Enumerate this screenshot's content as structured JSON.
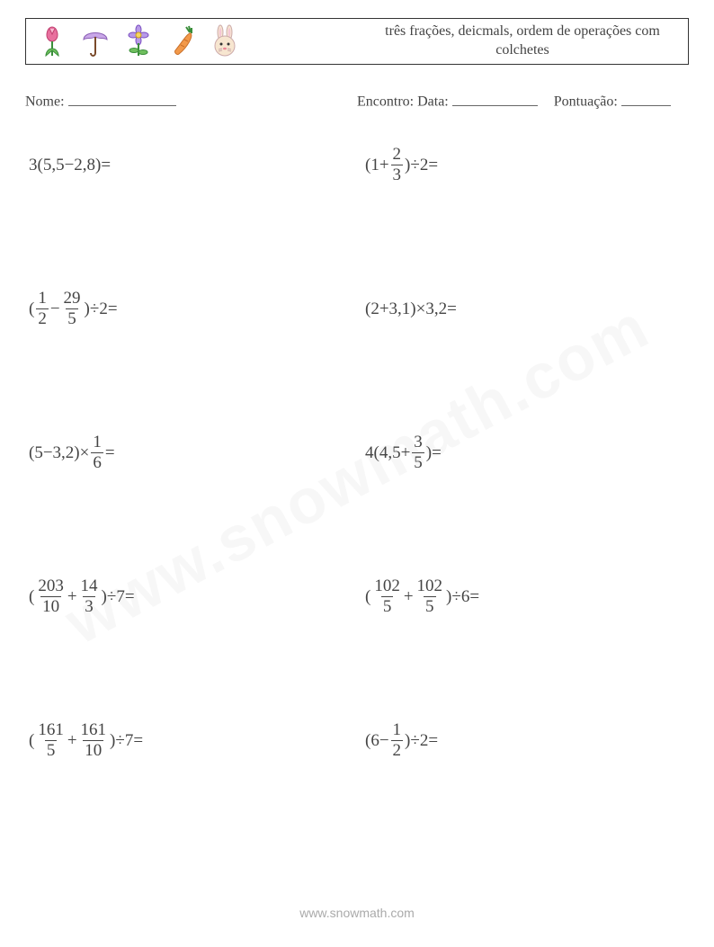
{
  "colors": {
    "text": "#444444",
    "border": "#333333",
    "watermark": "rgba(120,120,120,0.06)",
    "footer": "#aaaaaa",
    "background": "#ffffff"
  },
  "typography": {
    "body_font": "Georgia, serif",
    "body_size_pt": 14,
    "title_size_pt": 12,
    "footer_font": "Verdana, sans-serif"
  },
  "header": {
    "title": "três frações, deicmals, ordem de operações com colchetes",
    "icons": [
      "tulip-icon",
      "umbrella-icon",
      "flower-icon",
      "carrot-icon",
      "bunny-icon"
    ]
  },
  "info": {
    "name_label": "Nome:",
    "date_label": "Encontro: Data:",
    "score_label": "Pontuação:"
  },
  "problems": [
    {
      "id": "p1",
      "tokens": [
        "3",
        "(",
        "5",
        ",",
        "5",
        " − ",
        "2",
        ",",
        "8",
        ")",
        " = "
      ]
    },
    {
      "id": "p2",
      "tokens": [
        "(",
        "1",
        " + ",
        {
          "frac": [
            "2",
            "3"
          ]
        },
        ")",
        " ÷ ",
        "2",
        " = "
      ]
    },
    {
      "id": "p3",
      "tokens": [
        "(",
        {
          "frac": [
            "1",
            "2"
          ]
        },
        " − ",
        {
          "frac": [
            "29",
            "5"
          ]
        },
        ")",
        " ÷ ",
        "2",
        " = "
      ]
    },
    {
      "id": "p4",
      "tokens": [
        "(",
        "2",
        " + ",
        "3",
        ",",
        "1",
        ")",
        " × ",
        "3",
        ",",
        "2",
        " = "
      ]
    },
    {
      "id": "p5",
      "tokens": [
        "(",
        "5",
        " − ",
        "3",
        ",",
        "2",
        ")",
        " × ",
        {
          "frac": [
            "1",
            "6"
          ]
        },
        " = "
      ]
    },
    {
      "id": "p6",
      "tokens": [
        "4",
        "(",
        "4",
        ",",
        "5",
        " + ",
        {
          "frac": [
            "3",
            "5"
          ]
        },
        ")",
        " = "
      ]
    },
    {
      "id": "p7",
      "tokens": [
        "(",
        {
          "frac": [
            "203",
            "10"
          ]
        },
        " + ",
        {
          "frac": [
            "14",
            "3"
          ]
        },
        ")",
        " ÷ ",
        "7",
        " = "
      ]
    },
    {
      "id": "p8",
      "tokens": [
        "(",
        {
          "frac": [
            "102",
            "5"
          ]
        },
        " + ",
        {
          "frac": [
            "102",
            "5"
          ]
        },
        ")",
        " ÷ ",
        "6",
        " = "
      ]
    },
    {
      "id": "p9",
      "tokens": [
        "(",
        {
          "frac": [
            "161",
            "5"
          ]
        },
        " + ",
        {
          "frac": [
            "161",
            "10"
          ]
        },
        ")",
        " ÷ ",
        "7",
        " = "
      ]
    },
    {
      "id": "p10",
      "tokens": [
        "(",
        "6",
        " − ",
        {
          "frac": [
            "1",
            "2"
          ]
        },
        ")",
        " ÷ ",
        "2",
        " = "
      ]
    }
  ],
  "footer": {
    "url": "www.snowmath.com"
  },
  "watermark": {
    "text": "www.snowmath.com"
  }
}
